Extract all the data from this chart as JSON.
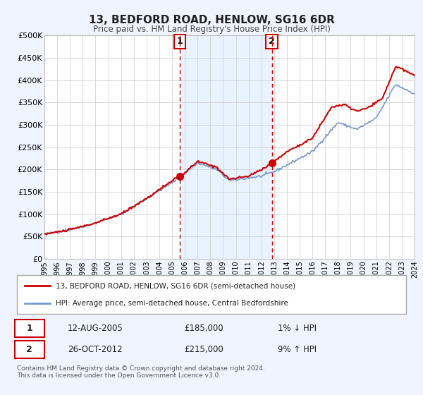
{
  "title": "13, BEDFORD ROAD, HENLOW, SG16 6DR",
  "subtitle": "Price paid vs. HM Land Registry's House Price Index (HPI)",
  "legend_line1": "13, BEDFORD ROAD, HENLOW, SG16 6DR (semi-detached house)",
  "legend_line2": "HPI: Average price, semi-detached house, Central Bedfordshire",
  "transaction1_date": "12-AUG-2005",
  "transaction1_price": "£185,000",
  "transaction1_hpi": "1% ↓ HPI",
  "transaction2_date": "26-OCT-2012",
  "transaction2_price": "£215,000",
  "transaction2_hpi": "9% ↑ HPI",
  "footnote": "Contains HM Land Registry data © Crown copyright and database right 2024.\nThis data is licensed under the Open Government Licence v3.0.",
  "xmin": 1995,
  "xmax": 2024,
  "ymin": 0,
  "ymax": 500000,
  "yticks": [
    0,
    50000,
    100000,
    150000,
    200000,
    250000,
    300000,
    350000,
    400000,
    450000,
    500000
  ],
  "ytick_labels": [
    "£0",
    "£50K",
    "£100K",
    "£150K",
    "£200K",
    "£250K",
    "£300K",
    "£350K",
    "£400K",
    "£450K",
    "£500K"
  ],
  "price_paid_color": "#cc0000",
  "hpi_color": "#7799cc",
  "background_color": "#f0f4ff",
  "plot_bg_color": "#ffffff",
  "dashed_line_color": "#cc0000",
  "marker1_x": 2005.62,
  "marker1_y": 185000,
  "marker2_x": 2012.82,
  "marker2_y": 215000,
  "shaded_xmin": 2005.62,
  "shaded_xmax": 2012.82,
  "hpi_anchors_x": [
    1995,
    1997,
    1999,
    2001,
    2003,
    2005,
    2007,
    2008.5,
    2009.5,
    2012,
    2013,
    2016,
    2018,
    2019.5,
    2021,
    2022.5,
    2024
  ],
  "hpi_anchors_y": [
    55000,
    65000,
    80000,
    100000,
    135000,
    170000,
    215000,
    200000,
    175000,
    185000,
    195000,
    240000,
    305000,
    290000,
    315000,
    390000,
    370000
  ],
  "pp_anchors_x": [
    1995,
    1997,
    1999,
    2001,
    2003,
    2005,
    2005.7,
    2007,
    2008.5,
    2009.5,
    2011,
    2012,
    2012.9,
    2014,
    2016,
    2017.5,
    2018.5,
    2019.5,
    2020.5,
    2021.5,
    2022.5,
    2023.0,
    2024
  ],
  "pp_anchors_y": [
    55000,
    65000,
    80000,
    100000,
    135000,
    175000,
    185000,
    218000,
    205000,
    178000,
    185000,
    200000,
    215000,
    240000,
    270000,
    340000,
    345000,
    330000,
    340000,
    360000,
    430000,
    425000,
    410000
  ]
}
